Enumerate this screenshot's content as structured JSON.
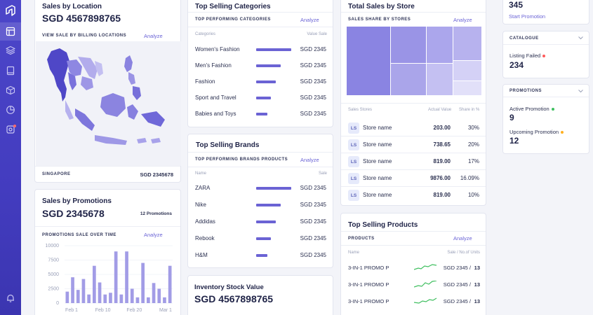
{
  "sales_by_location": {
    "title": "Sales by Location",
    "value": "SGD 4567898765",
    "subtitle": "VIEW SALE BY BILLING LOCATIONS",
    "analyze": "Analyze",
    "footer_label": "SINGAPORE",
    "footer_value": "SGD 2345678"
  },
  "sales_by_promotions": {
    "title": "Sales by Promotions",
    "value": "SGD 2345678",
    "count": "12 Promotions",
    "subtitle": "PROMOTIONS SALE OVER TIME",
    "analyze": "Analyze",
    "chart_data": {
      "type": "bar",
      "y_ticks": [
        "10000",
        "7500",
        "5000",
        "2500",
        "0"
      ],
      "x_ticks": [
        "Feb 1",
        "Feb 10",
        "Feb 20",
        "Mar 1"
      ],
      "ylim": [
        0,
        10000
      ],
      "values": [
        2000,
        4500,
        2300,
        4200,
        1500,
        6500,
        3600,
        1500,
        1800,
        9000,
        1500,
        9000,
        2500,
        1000,
        7000,
        1000,
        3500,
        2500,
        1000,
        6500
      ]
    }
  },
  "top_categories": {
    "title": "Top Selling Categories",
    "subtitle": "TOP PERFORMING CATEGORIES",
    "analyze": "Analyze",
    "col_left": "Categories",
    "col_right": "Value Sale",
    "rows": [
      {
        "name": "Women's Fashion",
        "value": "SGD 2345",
        "share": 1.0
      },
      {
        "name": "Men's Fashion",
        "value": "SGD 2345",
        "share": 0.7
      },
      {
        "name": "Fashion",
        "value": "SGD 2345",
        "share": 0.56
      },
      {
        "name": "Sport and Travel",
        "value": "SGD 2345",
        "share": 0.42
      },
      {
        "name": "Babies and Toys",
        "value": "SGD 2345",
        "share": 0.32
      }
    ]
  },
  "top_brands": {
    "title": "Top Selling Brands",
    "subtitle": "TOP PERFORMING BRANDS PRODUCTS",
    "analyze": "Analyze",
    "col_left": "Name",
    "col_right": "Sale",
    "rows": [
      {
        "name": "ZARA",
        "value": "SGD 2345",
        "share": 1.0
      },
      {
        "name": "Nike",
        "value": "SGD 2345",
        "share": 0.7
      },
      {
        "name": "Addidas",
        "value": "SGD 2345",
        "share": 0.56
      },
      {
        "name": "Rebook",
        "value": "SGD 2345",
        "share": 0.42
      },
      {
        "name": "H&M",
        "value": "SGD 2345",
        "share": 0.32
      }
    ]
  },
  "inventory": {
    "title": "Inventory Stock Value",
    "value": "SGD 4567898765"
  },
  "sales_by_store": {
    "title": "Total Sales by Store",
    "subtitle": "SALES SHARE BY STORES",
    "analyze": "Analyze",
    "col_store": "Sales Stores",
    "col_value": "Actual Value",
    "col_share": "Share in %",
    "rows": [
      {
        "badge": "LS",
        "name": "Store name",
        "value": "203.00",
        "share": "30%"
      },
      {
        "badge": "LS",
        "name": "Store name",
        "value": "738.65",
        "share": "20%"
      },
      {
        "badge": "LS",
        "name": "Store name",
        "value": "819.00",
        "share": "17%"
      },
      {
        "badge": "LS",
        "name": "Store name",
        "value": "9876.00",
        "share": "16.09%"
      },
      {
        "badge": "LS",
        "name": "Store name",
        "value": "819.00",
        "share": "10%"
      }
    ]
  },
  "top_products": {
    "title": "Top Selling Products",
    "subtitle": "PRODUCTS",
    "analyze": "Analyze",
    "col_left": "Name",
    "col_right": "Sale / No.of Units",
    "rows": [
      {
        "name": "3-IN-1 PROMO P",
        "value": "SGD 2345 /",
        "units": "13"
      },
      {
        "name": "3-IN-1 PROMO P",
        "value": "SGD 2345 /",
        "units": "13"
      },
      {
        "name": "3-IN-1 PROMO P",
        "value": "SGD 2345 /",
        "units": "13"
      }
    ]
  },
  "promo_top": {
    "value": "345",
    "link": "Start Promotion"
  },
  "catalogue": {
    "header": "CATALOGUE",
    "label": "Listing Failed",
    "value": "234",
    "dot_color": "#ff5b5b"
  },
  "promotions": {
    "header": "PROMOTIONS",
    "active_label": "Active Promotion",
    "active_value": "9",
    "active_dot": "#3fbf5f",
    "upcoming_label": "Upcoming Promotion",
    "upcoming_value": "12",
    "upcoming_dot": "#ffb020"
  },
  "colors": {
    "accent": "#6b64d6",
    "sidebar": "#4640c4"
  },
  "icons": [
    "logo-icon",
    "layout-icon",
    "layers-icon",
    "book-icon",
    "box-icon",
    "pie-chart-icon",
    "settings-icon",
    "bell-icon"
  ]
}
